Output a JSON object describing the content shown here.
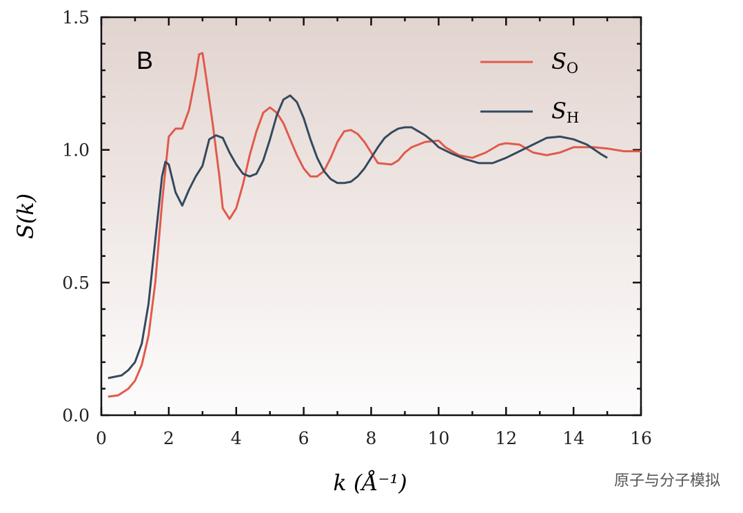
{
  "chart_data": {
    "type": "line",
    "panel_label": "B",
    "xlabel": "k (Å⁻¹)",
    "ylabel": "S(k)",
    "annotation": "原子与分子模拟",
    "xlim": [
      0,
      16
    ],
    "xticks": [
      0,
      2,
      4,
      6,
      8,
      10,
      12,
      14,
      16
    ],
    "minor_xticks": [
      1,
      3,
      5,
      7,
      9,
      11,
      13,
      15
    ],
    "ylim": [
      0,
      1.5
    ],
    "yticks": [
      {
        "value": 0,
        "label": "0.0"
      },
      0.5,
      {
        "value": 1,
        "label": "1.0"
      },
      1.5
    ],
    "minor_yticks": [
      0.1,
      0.2,
      0.3,
      0.4,
      0.6,
      0.7,
      0.8,
      0.9,
      1.1,
      1.2,
      1.3,
      1.4
    ],
    "legend": "upper right",
    "series": [
      {
        "name": "SO",
        "color": "#e05a4c",
        "x": [
          0.2,
          0.5,
          0.8,
          1.0,
          1.2,
          1.4,
          1.6,
          1.8,
          2.0,
          2.2,
          2.4,
          2.6,
          2.8,
          2.9,
          3.0,
          3.1,
          3.3,
          3.5,
          3.6,
          3.8,
          4.0,
          4.2,
          4.4,
          4.6,
          4.8,
          5.0,
          5.2,
          5.4,
          5.6,
          5.8,
          6.0,
          6.2,
          6.4,
          6.6,
          6.8,
          7.0,
          7.2,
          7.4,
          7.6,
          7.8,
          8.0,
          8.2,
          8.6,
          8.8,
          9.0,
          9.2,
          9.4,
          9.6,
          10.0,
          10.2,
          10.6,
          11.0,
          11.4,
          11.8,
          12.0,
          12.4,
          12.8,
          13.2,
          13.6,
          14.0,
          14.6,
          15.0,
          15.5,
          16.0
        ],
        "values": [
          0.07,
          0.075,
          0.1,
          0.13,
          0.19,
          0.3,
          0.5,
          0.8,
          1.05,
          1.08,
          1.08,
          1.15,
          1.28,
          1.36,
          1.365,
          1.28,
          1.1,
          0.9,
          0.78,
          0.74,
          0.78,
          0.87,
          0.98,
          1.07,
          1.14,
          1.16,
          1.14,
          1.1,
          1.04,
          0.98,
          0.93,
          0.9,
          0.9,
          0.92,
          0.97,
          1.03,
          1.07,
          1.075,
          1.06,
          1.03,
          0.99,
          0.95,
          0.945,
          0.96,
          0.99,
          1.01,
          1.02,
          1.03,
          1.035,
          1.01,
          0.98,
          0.97,
          0.99,
          1.02,
          1.025,
          1.02,
          0.99,
          0.98,
          0.99,
          1.01,
          1.01,
          1.005,
          0.995,
          0.995
        ]
      },
      {
        "name": "SH",
        "color": "#34495e",
        "x": [
          0.2,
          0.4,
          0.6,
          0.8,
          1.0,
          1.2,
          1.4,
          1.6,
          1.8,
          1.9,
          2.0,
          2.2,
          2.4,
          2.6,
          2.8,
          3.0,
          3.2,
          3.4,
          3.6,
          3.8,
          4.0,
          4.2,
          4.4,
          4.6,
          4.8,
          5.0,
          5.2,
          5.4,
          5.6,
          5.8,
          6.0,
          6.2,
          6.4,
          6.6,
          6.8,
          7.0,
          7.2,
          7.4,
          7.6,
          7.8,
          8.0,
          8.2,
          8.4,
          8.6,
          8.8,
          9.0,
          9.2,
          9.4,
          9.6,
          9.8,
          10.0,
          10.4,
          10.8,
          11.2,
          11.6,
          12.0,
          12.4,
          12.8,
          13.2,
          13.6,
          14.0,
          14.4,
          14.8,
          15.0
        ],
        "values": [
          0.14,
          0.145,
          0.15,
          0.17,
          0.2,
          0.27,
          0.42,
          0.66,
          0.9,
          0.955,
          0.945,
          0.84,
          0.79,
          0.85,
          0.9,
          0.94,
          1.04,
          1.055,
          1.045,
          0.99,
          0.945,
          0.91,
          0.9,
          0.91,
          0.96,
          1.04,
          1.13,
          1.19,
          1.205,
          1.18,
          1.12,
          1.04,
          0.97,
          0.92,
          0.89,
          0.875,
          0.875,
          0.88,
          0.9,
          0.93,
          0.97,
          1.01,
          1.045,
          1.065,
          1.08,
          1.085,
          1.085,
          1.07,
          1.055,
          1.035,
          1.01,
          0.985,
          0.965,
          0.95,
          0.95,
          0.97,
          0.995,
          1.02,
          1.045,
          1.05,
          1.04,
          1.02,
          0.985,
          0.97
        ]
      }
    ]
  }
}
